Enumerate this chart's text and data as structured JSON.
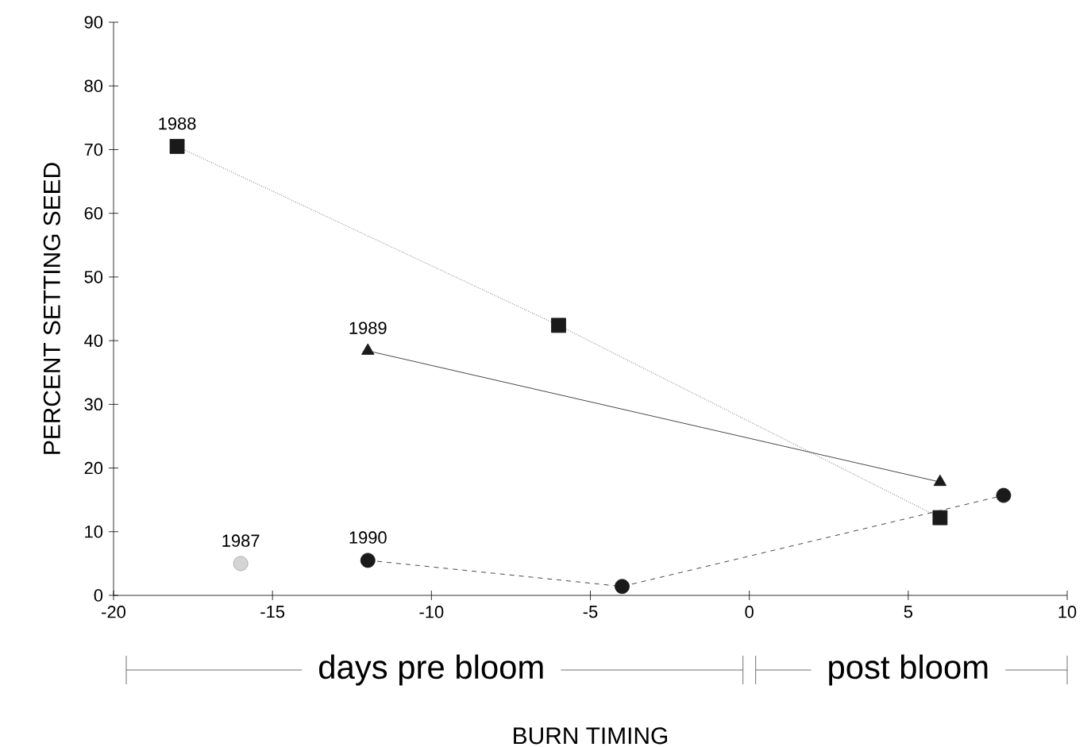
{
  "chart_data": {
    "type": "line",
    "xlabel": "BURN TIMING",
    "ylabel": "PERCENT SETTING SEED",
    "xlim": [
      -20,
      10
    ],
    "ylim": [
      0,
      90
    ],
    "xticks": [
      -20,
      -15,
      -10,
      -5,
      0,
      5,
      10
    ],
    "yticks": [
      0,
      10,
      20,
      30,
      40,
      50,
      60,
      70,
      80,
      90
    ],
    "series": [
      {
        "name": "1987",
        "color": "#d4d4d4",
        "marker": "circle",
        "x": [
          -16
        ],
        "values": [
          5
        ]
      },
      {
        "name": "1988",
        "color": "#1a1a1a",
        "marker": "square",
        "line_style": "dotted",
        "x": [
          -18,
          -6,
          6
        ],
        "values": [
          70.5,
          42.4,
          12.2
        ]
      },
      {
        "name": "1989",
        "color": "#1a1a1a",
        "marker": "triangle",
        "line_style": "solid",
        "x": [
          -12,
          6
        ],
        "values": [
          38.4,
          17.8
        ]
      },
      {
        "name": "1990",
        "color": "#1a1a1a",
        "marker": "circle",
        "line_style": "dashed",
        "x": [
          -12,
          -4,
          8
        ],
        "values": [
          5.5,
          1.4,
          15.7
        ]
      }
    ],
    "annotations": [
      "days pre bloom",
      "post bloom"
    ]
  }
}
